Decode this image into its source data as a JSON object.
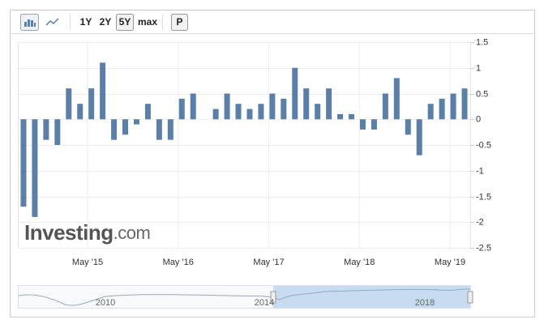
{
  "toolbar": {
    "ranges": [
      "1Y",
      "2Y",
      "5Y",
      "max"
    ],
    "selected": "5Y",
    "print": "P"
  },
  "chart_data": {
    "type": "bar",
    "color": "#5b7fa7",
    "values": [
      -1.7,
      -1.9,
      -0.4,
      -0.5,
      0.6,
      0.3,
      0.6,
      1.1,
      -0.4,
      -0.3,
      -0.1,
      0.3,
      -0.4,
      -0.4,
      0.4,
      0.5,
      0,
      0.2,
      0.5,
      0.3,
      0.2,
      0.3,
      0.5,
      0.4,
      1.0,
      0.6,
      0.3,
      0.6,
      0.1,
      0.1,
      -0.2,
      -0.2,
      0.5,
      0.8,
      -0.3,
      -0.7,
      0.3,
      0.4,
      0.5,
      0.6
    ],
    "xtick_labels": [
      "May '15",
      "May '16",
      "May '17",
      "May '18",
      "May '19"
    ],
    "ylim": [
      -2.5,
      1.5
    ],
    "yticks": [
      1.5,
      1,
      0.5,
      0,
      -0.5,
      -1,
      -1.5,
      -2,
      -2.5
    ],
    "grid": true,
    "watermark": {
      "brand": "Investing",
      "suffix": ".com"
    },
    "navigator_labels": [
      "2010",
      "2014",
      "2018"
    ]
  }
}
